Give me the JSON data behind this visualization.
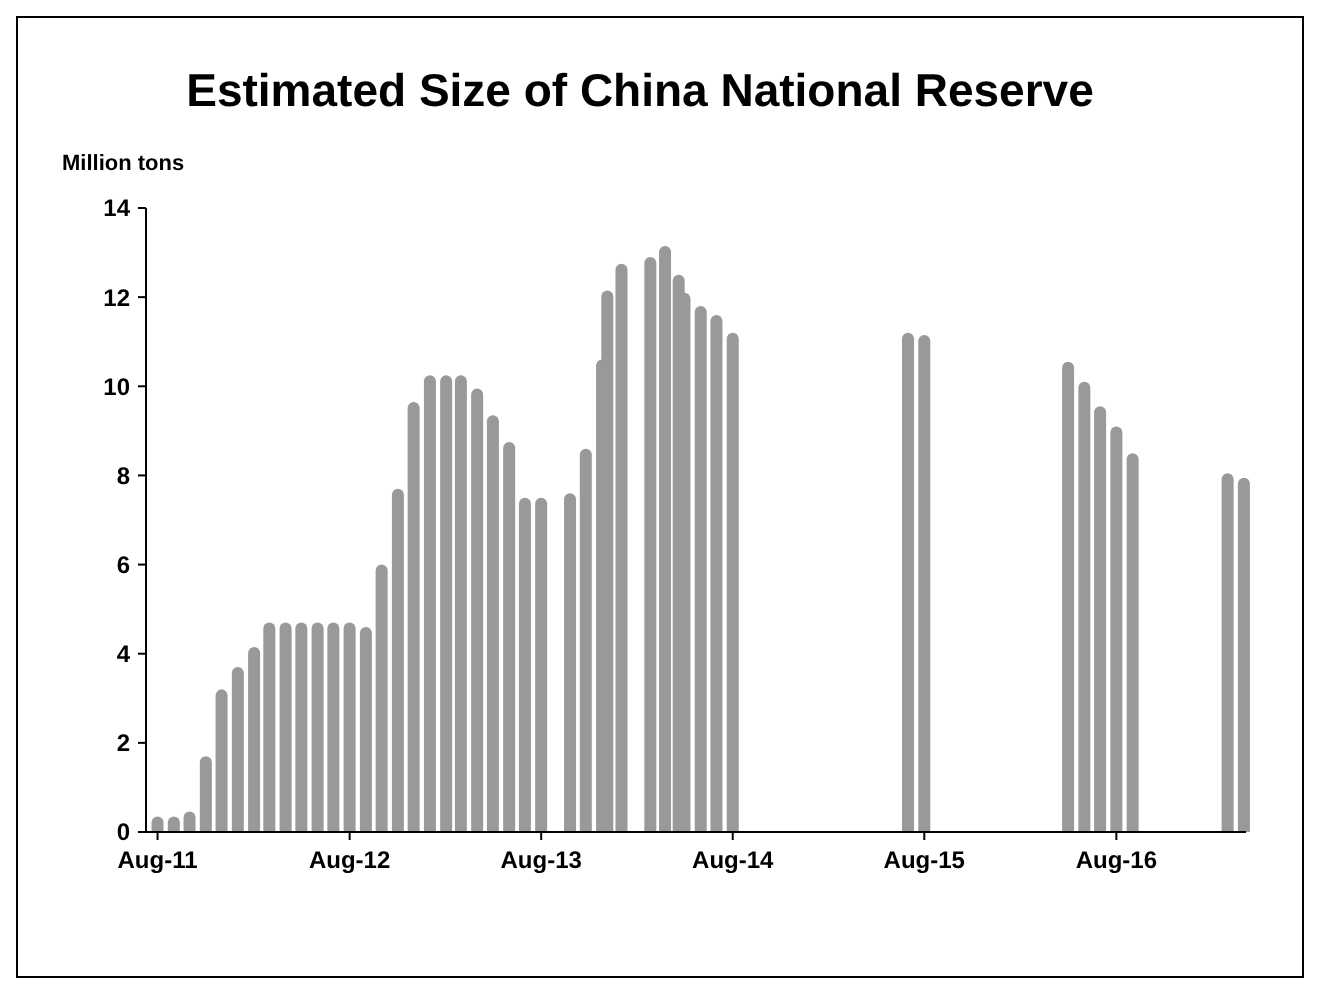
{
  "chart_data": {
    "type": "bar",
    "title": "Estimated Size of China National Reserve",
    "ylabel": "Million tons",
    "x": [
      "2011-08-01",
      "2011-09-01",
      "2011-10-01",
      "2011-11-01",
      "2011-12-01",
      "2012-01-01",
      "2012-02-01",
      "2012-03-01",
      "2012-04-01",
      "2012-05-01",
      "2012-06-01",
      "2012-07-01",
      "2012-08-01",
      "2012-09-01",
      "2012-10-01",
      "2012-11-01",
      "2012-12-01",
      "2013-01-01",
      "2013-02-01",
      "2013-03-01",
      "2013-04-01",
      "2013-05-01",
      "2013-06-01",
      "2013-07-01",
      "2013-08-01",
      "2013-09-25",
      "2013-10-25",
      "2013-11-25",
      "2013-12-05",
      "2014-01-01",
      "2014-02-25",
      "2014-03-25",
      "2014-04-20",
      "2014-05-01",
      "2014-06-01",
      "2014-07-01",
      "2014-08-01",
      "2015-07-01",
      "2015-08-01",
      "2016-05-01",
      "2016-06-01",
      "2016-07-01",
      "2016-08-01",
      "2016-09-01",
      "2017-03-01",
      "2017-04-01"
    ],
    "values": [
      0.35,
      0.35,
      0.46,
      1.7,
      3.2,
      3.7,
      4.15,
      4.7,
      4.7,
      4.7,
      4.7,
      4.7,
      4.7,
      4.6,
      6.0,
      7.7,
      9.65,
      10.25,
      10.25,
      10.25,
      9.95,
      9.35,
      8.75,
      7.5,
      7.5,
      7.6,
      8.6,
      10.6,
      12.15,
      12.75,
      12.9,
      13.15,
      12.5,
      12.1,
      11.8,
      11.6,
      11.2,
      11.2,
      11.15,
      10.55,
      10.1,
      9.55,
      9.1,
      8.5,
      8.05,
      7.95
    ],
    "color": "#999999",
    "xlim": [
      "2011-07-10",
      "2017-04-05"
    ],
    "xticks": [
      {
        "value": "2011-08-01",
        "label": "Aug-11"
      },
      {
        "value": "2012-08-01",
        "label": "Aug-12"
      },
      {
        "value": "2013-08-01",
        "label": "Aug-13"
      },
      {
        "value": "2014-08-01",
        "label": "Aug-14"
      },
      {
        "value": "2015-08-01",
        "label": "Aug-15"
      },
      {
        "value": "2016-08-01",
        "label": "Aug-16"
      }
    ],
    "ylim": [
      0,
      14
    ],
    "yticks": [
      0,
      2,
      4,
      6,
      8,
      10,
      12,
      14
    ],
    "grid": false
  }
}
